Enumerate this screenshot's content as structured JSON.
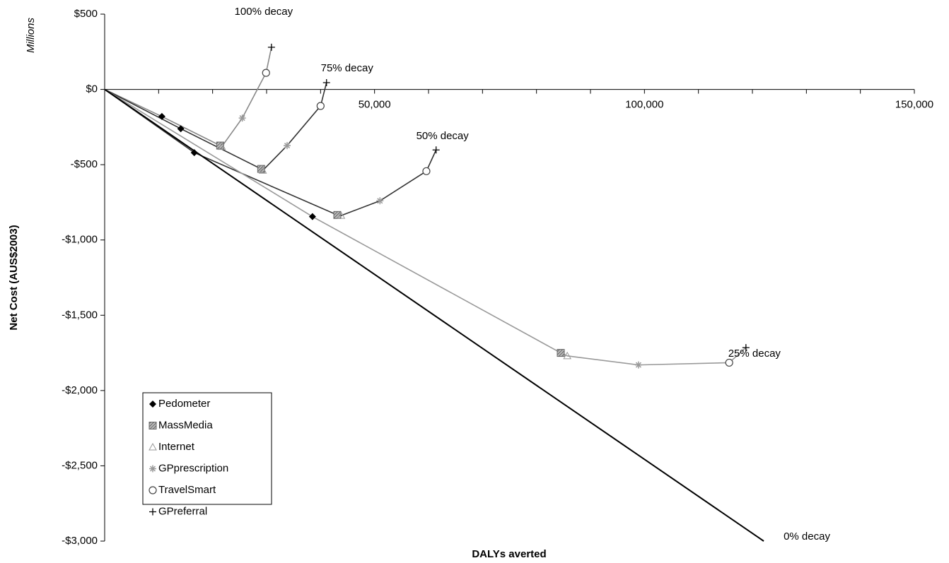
{
  "chart_data": {
    "type": "line",
    "xlabel": "DALYs averted",
    "ylabel": "Net Cost (AUS$2003)",
    "yunit": "Millions",
    "xlim": [
      0,
      150000
    ],
    "ylim": [
      -3000,
      500
    ],
    "xticks": [
      {
        "value": 50000,
        "label": "50,000"
      },
      {
        "value": 100000,
        "label": "100,000"
      },
      {
        "value": 150000,
        "label": "150,000"
      }
    ],
    "xticks_minor": [
      10000,
      20000,
      30000,
      40000,
      60000,
      70000,
      80000,
      90000,
      110000,
      120000,
      130000,
      140000
    ],
    "yticks": [
      {
        "value": 500,
        "label": "$500"
      },
      {
        "value": 0,
        "label": "$0"
      },
      {
        "value": -500,
        "label": "-$500"
      },
      {
        "value": -1000,
        "label": "-$1,000"
      },
      {
        "value": -1500,
        "label": "-$1,500"
      },
      {
        "value": -2000,
        "label": "-$2,000"
      },
      {
        "value": -2500,
        "label": "-$2,500"
      },
      {
        "value": -3000,
        "label": "-$3,000"
      }
    ],
    "legend_position": "lower left",
    "interventions": [
      {
        "name": "Pedometer",
        "marker": "diamond"
      },
      {
        "name": "MassMedia",
        "marker": "square"
      },
      {
        "name": "Internet",
        "marker": "triangle"
      },
      {
        "name": "GPprescription",
        "marker": "asterisk"
      },
      {
        "name": "TravelSmart",
        "marker": "circle"
      },
      {
        "name": "GPreferral",
        "marker": "plus"
      }
    ],
    "series": [
      {
        "name": "100% decay",
        "color": "#888888",
        "markers": true,
        "x": [
          0,
          10600,
          21400,
          21700,
          25500,
          29900,
          30900
        ],
        "values": [
          0,
          -180,
          -373,
          -380,
          -190,
          110,
          280
        ]
      },
      {
        "name": "75% decay",
        "color": "#333333",
        "markers": true,
        "x": [
          0,
          14100,
          29000,
          29300,
          33800,
          40000,
          41100
        ],
        "values": [
          0,
          -261,
          -528,
          -538,
          -373,
          -110,
          45
        ]
      },
      {
        "name": "50% decay",
        "color": "#333333",
        "markers": true,
        "x": [
          0,
          16600,
          43100,
          43800,
          51000,
          59600,
          61400
        ],
        "values": [
          0,
          -420,
          -834,
          -838,
          -740,
          -543,
          -402
        ]
      },
      {
        "name": "25% decay",
        "color": "#999999",
        "markers": true,
        "x": [
          0,
          38500,
          84500,
          85700,
          98900,
          115700,
          118800
        ],
        "values": [
          0,
          -845,
          -1750,
          -1770,
          -1830,
          -1815,
          -1715
        ]
      },
      {
        "name": "0% decay",
        "color": "#000000",
        "markers": false,
        "x": [
          0,
          122100
        ],
        "values": [
          0,
          -3000
        ]
      }
    ]
  }
}
